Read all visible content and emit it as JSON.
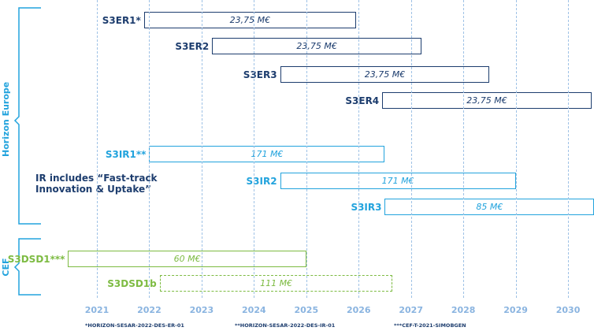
{
  "groups": {
    "horizon": "Horizon Europe",
    "cef": "CEF"
  },
  "years": [
    "2021",
    "2022",
    "2023",
    "2024",
    "2025",
    "2026",
    "2027",
    "2028",
    "2029",
    "2030"
  ],
  "bars": [
    {
      "id": "s3er1",
      "label": "S3ER1*",
      "amount": "23,75 M€",
      "kind": "er",
      "dashed": false,
      "start": 2021.9,
      "end": 2025.95
    },
    {
      "id": "s3er2",
      "label": "S3ER2",
      "amount": "23,75 M€",
      "kind": "er",
      "dashed": false,
      "start": 2023.2,
      "end": 2027.2
    },
    {
      "id": "s3er3",
      "label": "S3ER3",
      "amount": "23,75 M€",
      "kind": "er",
      "dashed": false,
      "start": 2024.5,
      "end": 2028.5
    },
    {
      "id": "s3er4",
      "label": "S3ER4",
      "amount": "23,75 M€",
      "kind": "er",
      "dashed": false,
      "start": 2026.45,
      "end": 2030.45
    },
    {
      "id": "s3ir1",
      "label": "S3IR1**",
      "amount": "171 M€",
      "kind": "ir",
      "dashed": false,
      "start": 2022.0,
      "end": 2026.5
    },
    {
      "id": "s3ir2",
      "label": "S3IR2",
      "amount": "171 M€",
      "kind": "ir",
      "dashed": false,
      "start": 2024.5,
      "end": 2029.0
    },
    {
      "id": "s3ir3",
      "label": "S3IR3",
      "amount": "85 M€",
      "kind": "ir",
      "dashed": false,
      "start": 2026.5,
      "end": 2030.5
    },
    {
      "id": "s3dsd1",
      "label": "S3DSD1***",
      "amount": "60 M€",
      "kind": "dsd",
      "dashed": false,
      "start": 2020.45,
      "end": 2025.0
    },
    {
      "id": "s3dsd1b",
      "label": "S3DSD1b",
      "amount": "111 M€",
      "kind": "dsd",
      "dashed": true,
      "start": 2022.2,
      "end": 2026.65
    }
  ],
  "ir_note": "IR includes “Fast-track Innovation & Uptake”",
  "footnotes": {
    "f1": "*HORIZON-SESAR-2022-DES-ER-01",
    "f2": "**HORIZON-SESAR-2022-DES-IR-01",
    "f3": "***CEF-T-2021-SIMOBGEN"
  }
}
